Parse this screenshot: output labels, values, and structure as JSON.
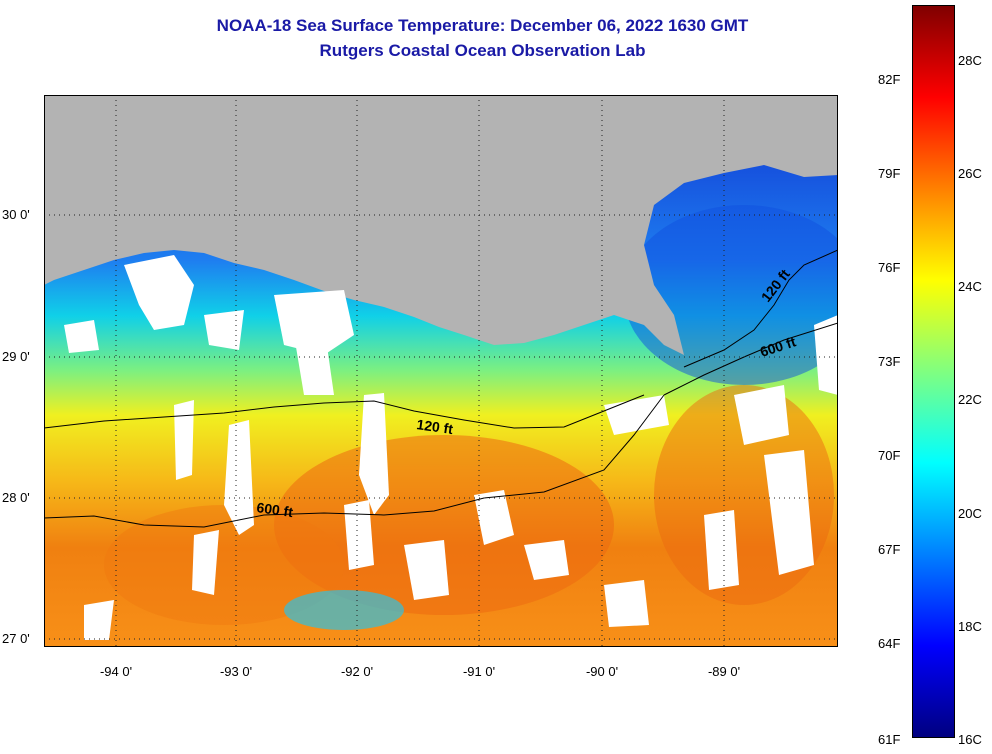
{
  "header": {
    "title_line1": "NOAA-18 Sea Surface Temperature:  December 06, 2022 1630 GMT",
    "title_line2": "Rutgers Coastal Ocean Observation Lab"
  },
  "map": {
    "lat_labels": [
      "30 0'",
      "29 0'",
      "28 0'",
      "27 0'"
    ],
    "lon_labels": [
      "-94 0'",
      "-93 0'",
      "-92 0'",
      "-91 0'",
      "-90 0'",
      "-89 0'"
    ],
    "contours": [
      {
        "label": "120 ft"
      },
      {
        "label": "600 ft"
      },
      {
        "label": "120 ft"
      },
      {
        "label": "600 ft"
      }
    ],
    "colors": {
      "land": "#b3b3b3",
      "cloud": "#ffffff",
      "contour_line": "#000000"
    }
  },
  "colorbar": {
    "fahrenheit_labels": [
      "82F",
      "79F",
      "76F",
      "73F",
      "70F",
      "67F",
      "64F",
      "61F"
    ],
    "celsius_labels": [
      "28C",
      "26C",
      "24C",
      "22C",
      "20C",
      "18C",
      "16C"
    ],
    "colormap": [
      "#800000",
      "#ff0000",
      "#ff8000",
      "#ffff00",
      "#80ff80",
      "#00ffff",
      "#0080ff",
      "#0000ff",
      "#000080"
    ]
  }
}
